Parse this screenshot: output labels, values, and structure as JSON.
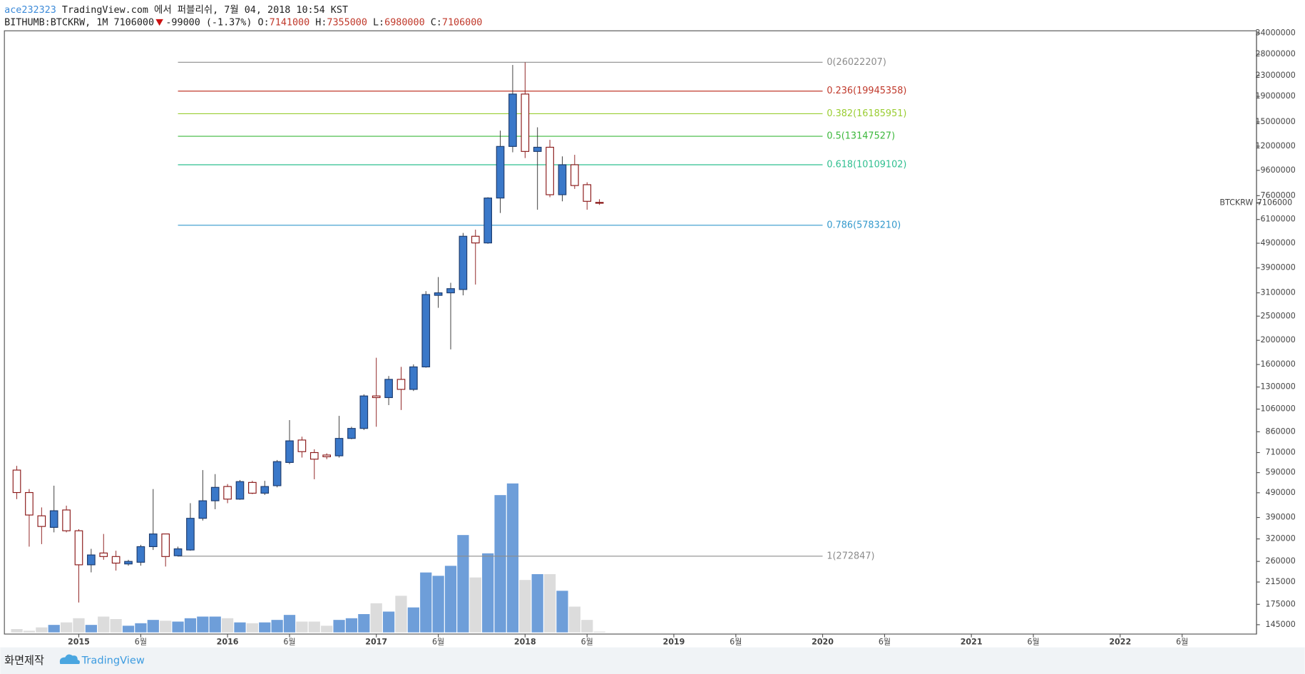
{
  "header": {
    "user": "ace232323",
    "published": "TradingView.com 에서 퍼블리쉬, 7월 04, 2018 10:54 KST",
    "symbol": "BITHUMB:BTCKRW, 1M",
    "change": "-99000 (-1.37%)",
    "o": "O:",
    "h": "H:",
    "l": "L:",
    "c": "C:"
  },
  "footer": {
    "made": "화면제작",
    "brand": "TradingView"
  },
  "chart_data": {
    "type": "candlestick",
    "symbol_label": "BTCKRW",
    "log_scale": true,
    "grid": false,
    "up_color": "#3a78c9",
    "down_color": "#8b1a1a",
    "volume_up_color": "#4a86cf",
    "volume_down_color": "#dcdcdc",
    "x": [
      "2014-08",
      "2014-09",
      "2014-10",
      "2014-11",
      "2014-12",
      "2015-01",
      "2015-02",
      "2015-03",
      "2015-04",
      "2015-05",
      "2015-06",
      "2015-07",
      "2015-08",
      "2015-09",
      "2015-10",
      "2015-11",
      "2015-12",
      "2016-01",
      "2016-02",
      "2016-03",
      "2016-04",
      "2016-05",
      "2016-06",
      "2016-07",
      "2016-08",
      "2016-09",
      "2016-10",
      "2016-11",
      "2016-12",
      "2017-01",
      "2017-02",
      "2017-03",
      "2017-04",
      "2017-05",
      "2017-06",
      "2017-07",
      "2017-08",
      "2017-09",
      "2017-10",
      "2017-11",
      "2017-12",
      "2018-01",
      "2018-02",
      "2018-03",
      "2018-04",
      "2018-05",
      "2018-06",
      "2018-07"
    ],
    "open": [
      604000,
      491000,
      396000,
      356000,
      418000,
      345000,
      252000,
      281000,
      272000,
      254000,
      258000,
      298000,
      335000,
      274000,
      289000,
      387000,
      455000,
      519000,
      462000,
      539000,
      488000,
      523000,
      648000,
      797000,
      710000,
      694000,
      689000,
      809000,
      887000,
      1197000,
      1179000,
      1395000,
      1272000,
      1565000,
      3029000,
      3100000,
      3197000,
      5225000,
      4913000,
      7436000,
      11970000,
      19410000,
      11430000,
      11880000,
      7667000,
      10110000,
      8410000,
      7141000
    ],
    "high": [
      628000,
      507000,
      428000,
      523000,
      435000,
      350000,
      292000,
      335000,
      287000,
      264000,
      303000,
      507000,
      335000,
      298000,
      445000,
      604000,
      582000,
      531000,
      551000,
      547000,
      547000,
      663000,
      958000,
      822000,
      732000,
      705000,
      996000,
      901000,
      1215000,
      1703000,
      1439000,
      1565000,
      1602000,
      3149000,
      3587000,
      3400000,
      5388000,
      5555000,
      7493000,
      13850000,
      25390000,
      26000000,
      14280000,
      12720000,
      10920000,
      11080000,
      8600000,
      7355000
    ],
    "low": [
      462000,
      298000,
      305000,
      340000,
      340000,
      178000,
      235000,
      264000,
      239000,
      250000,
      250000,
      289000,
      248000,
      272000,
      287000,
      379000,
      421000,
      445000,
      459000,
      484000,
      480000,
      515000,
      638000,
      678000,
      555000,
      668000,
      678000,
      803000,
      874000,
      901000,
      1100000,
      1051000,
      1253000,
      1554000,
      2700000,
      1839000,
      3029000,
      3347000,
      4876000,
      6477000,
      11340000,
      10750000,
      6677000,
      7493000,
      7213000,
      8090000,
      6677000,
      6980000
    ],
    "close": [
      491000,
      399000,
      359000,
      415000,
      345000,
      252000,
      276000,
      272000,
      256000,
      260000,
      298000,
      335000,
      272000,
      292000,
      387000,
      455000,
      515000,
      462000,
      543000,
      488000,
      519000,
      653000,
      791000,
      716000,
      668000,
      683000,
      809000,
      887000,
      1197000,
      1179000,
      1395000,
      1272000,
      1565000,
      3052000,
      3100000,
      3222000,
      5225000,
      4913000,
      7436000,
      11970000,
      19410000,
      11430000,
      11880000,
      7667000,
      10110000,
      8345000,
      7213000,
      7106000
    ],
    "volume": [
      4,
      2,
      6,
      9,
      12,
      17,
      9,
      19,
      16,
      8,
      11,
      15,
      14,
      13,
      17,
      19,
      19,
      17,
      12,
      11,
      12,
      15,
      21,
      13,
      13,
      8,
      15,
      17,
      22,
      35,
      25,
      44,
      30,
      72,
      68,
      80,
      117,
      66,
      95,
      165,
      179,
      63,
      70,
      70,
      50,
      31,
      15,
      1
    ],
    "volume_lim": [
      0,
      230
    ],
    "xlim": [
      "2014-07",
      "2022-12"
    ],
    "xticks": [
      {
        "value": "2015-01",
        "label": "2015"
      },
      {
        "value": "2015-06",
        "label": "6월"
      },
      {
        "value": "2016-01",
        "label": "2016"
      },
      {
        "value": "2016-06",
        "label": "6월"
      },
      {
        "value": "2017-01",
        "label": "2017"
      },
      {
        "value": "2017-06",
        "label": "6월"
      },
      {
        "value": "2018-01",
        "label": "2018"
      },
      {
        "value": "2018-06",
        "label": "6월"
      },
      {
        "value": "2019-01",
        "label": "2019"
      },
      {
        "value": "2019-06",
        "label": "6월"
      },
      {
        "value": "2020-01",
        "label": "2020"
      },
      {
        "value": "2020-06",
        "label": "6월"
      },
      {
        "value": "2021-01",
        "label": "2021"
      },
      {
        "value": "2021-06",
        "label": "6월"
      },
      {
        "value": "2022-01",
        "label": "2022"
      },
      {
        "value": "2022-06",
        "label": "6월"
      }
    ],
    "ylim": [
      133000,
      34800000
    ],
    "yticks": [
      34000000,
      28000000,
      23000000,
      19000000,
      15000000,
      12000000,
      9600000,
      7600000,
      6100000,
      4900000,
      3900000,
      3100000,
      2500000,
      2000000,
      1600000,
      1300000,
      1060000,
      860000,
      710000,
      590000,
      490000,
      390000,
      320000,
      260000,
      215000,
      175000,
      145000
    ],
    "fib": {
      "start": "2015-09",
      "end": "2020-01",
      "levels": [
        {
          "label": "0(26022207)",
          "value": 26022207,
          "color": "#8c8c8c"
        },
        {
          "label": "0.236(19945358)",
          "value": 19945358,
          "color": "#c0392b"
        },
        {
          "label": "0.382(16185951)",
          "value": 16185951,
          "color": "#9acd32"
        },
        {
          "label": "0.5(13147527)",
          "value": 13147527,
          "color": "#3cb83c"
        },
        {
          "label": "0.618(10109102)",
          "value": 10109102,
          "color": "#2fbf8f"
        },
        {
          "label": "0.786(5783210)",
          "value": 5783210,
          "color": "#3399cc"
        },
        {
          "label": "1(272847)",
          "value": 272847,
          "color": "#8c8c8c"
        }
      ]
    }
  }
}
